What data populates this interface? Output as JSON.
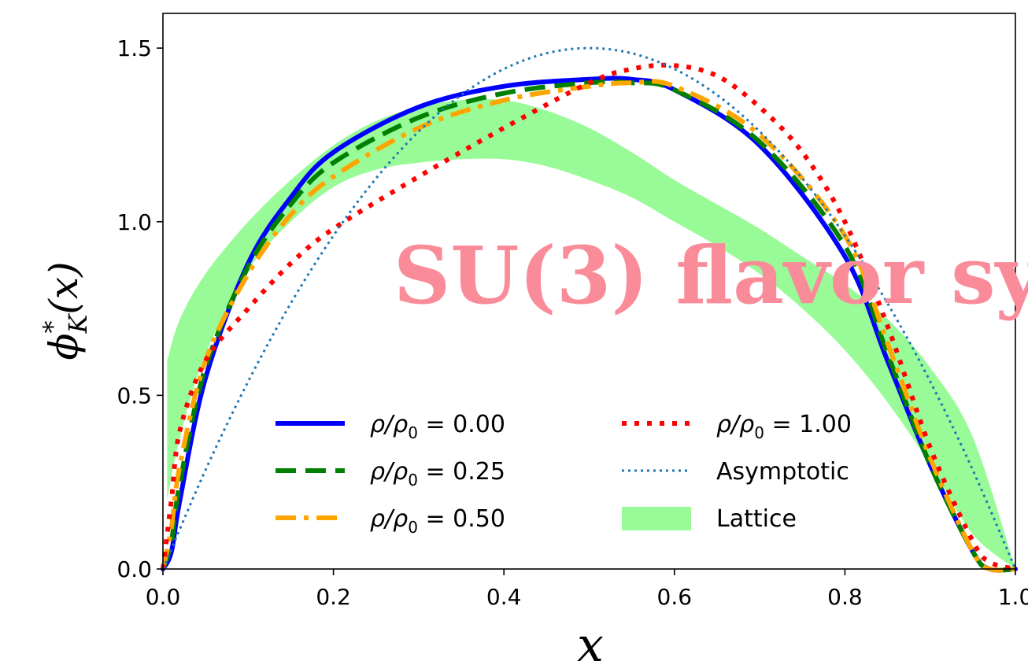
{
  "chart_data": {
    "type": "line",
    "xlabel": "x",
    "ylabel": "ϕ*K(x)",
    "ylabel_parts": {
      "symbol": "ϕ",
      "superscript": "*",
      "subscript": "K",
      "arg": "(x)"
    },
    "xlim": [
      0.0,
      1.0
    ],
    "ylim": [
      0.0,
      1.6
    ],
    "x_ticks": [
      {
        "value": 0.0,
        "label": "0.0"
      },
      {
        "value": 0.2,
        "label": "0.2"
      },
      {
        "value": 0.4,
        "label": "0.4"
      },
      {
        "value": 0.6,
        "label": "0.6"
      },
      {
        "value": 0.8,
        "label": "0.8"
      },
      {
        "value": 1.0,
        "label": "1.0"
      }
    ],
    "y_ticks": [
      {
        "value": 0.0,
        "label": "0.0"
      },
      {
        "value": 0.5,
        "label": "0.5"
      },
      {
        "value": 1.0,
        "label": "1.0"
      },
      {
        "value": 1.5,
        "label": "1.5"
      }
    ],
    "grid": false,
    "legend_placement": "bottom-center",
    "series": [
      {
        "name": "ρ/ρ0 = 0.00",
        "legend": {
          "text": "ρ/ρ",
          "sub": "0",
          "value": " = 0.00"
        },
        "color": "#0000ff",
        "style": "solid",
        "x": [
          0.0,
          0.01,
          0.02,
          0.05,
          0.1,
          0.15,
          0.2,
          0.3,
          0.4,
          0.5,
          0.55,
          0.6,
          0.7,
          0.8,
          0.85,
          0.9,
          0.95,
          0.97,
          1.0
        ],
        "y": [
          0.0,
          0.05,
          0.2,
          0.55,
          0.88,
          1.07,
          1.2,
          1.33,
          1.39,
          1.41,
          1.41,
          1.38,
          1.22,
          0.9,
          0.6,
          0.3,
          0.05,
          0.0,
          0.0
        ]
      },
      {
        "name": "ρ/ρ0 = 0.25",
        "legend": {
          "text": "ρ/ρ",
          "sub": "0",
          "value": " = 0.25"
        },
        "color": "#008000",
        "style": "dashed",
        "x": [
          0.0,
          0.01,
          0.02,
          0.05,
          0.1,
          0.15,
          0.2,
          0.3,
          0.4,
          0.5,
          0.55,
          0.6,
          0.7,
          0.8,
          0.85,
          0.9,
          0.95,
          0.97,
          1.0
        ],
        "y": [
          0.0,
          0.08,
          0.25,
          0.58,
          0.87,
          1.05,
          1.17,
          1.3,
          1.37,
          1.4,
          1.4,
          1.38,
          1.23,
          0.93,
          0.62,
          0.3,
          0.05,
          0.0,
          0.0
        ]
      },
      {
        "name": "ρ/ρ0 = 0.50",
        "legend": {
          "text": "ρ/ρ",
          "sub": "0",
          "value": " = 0.50"
        },
        "color": "#ffa500",
        "style": "dashdot",
        "x": [
          0.0,
          0.01,
          0.02,
          0.05,
          0.1,
          0.15,
          0.2,
          0.3,
          0.4,
          0.5,
          0.55,
          0.6,
          0.7,
          0.8,
          0.85,
          0.9,
          0.95,
          0.97,
          1.0
        ],
        "y": [
          0.0,
          0.12,
          0.3,
          0.6,
          0.85,
          1.02,
          1.13,
          1.27,
          1.35,
          1.39,
          1.4,
          1.39,
          1.25,
          0.96,
          0.65,
          0.32,
          0.05,
          0.0,
          0.0
        ]
      },
      {
        "name": "ρ/ρ0 = 1.00",
        "legend": {
          "text": "ρ/ρ",
          "sub": "0",
          "value": " = 1.00"
        },
        "color": "#ff0000",
        "style": "dotted",
        "x": [
          0.0,
          0.01,
          0.02,
          0.05,
          0.1,
          0.15,
          0.2,
          0.3,
          0.4,
          0.5,
          0.55,
          0.6,
          0.65,
          0.7,
          0.75,
          0.8,
          0.85,
          0.9,
          0.95,
          0.97,
          1.0
        ],
        "y": [
          0.0,
          0.2,
          0.4,
          0.6,
          0.75,
          0.88,
          0.98,
          1.13,
          1.27,
          1.4,
          1.44,
          1.45,
          1.42,
          1.33,
          1.2,
          1.0,
          0.7,
          0.35,
          0.08,
          0.02,
          0.0
        ]
      },
      {
        "name": "Asymptotic",
        "legend": {
          "text": "Asymptotic",
          "sub": "",
          "value": ""
        },
        "color": "#1f77b4",
        "style": "finedotted",
        "formula": "6x(1-x)",
        "x": [
          0.0,
          0.05,
          0.1,
          0.15,
          0.2,
          0.25,
          0.3,
          0.35,
          0.4,
          0.45,
          0.5,
          0.55,
          0.6,
          0.65,
          0.7,
          0.75,
          0.8,
          0.85,
          0.9,
          0.95,
          1.0
        ],
        "y": [
          0.0,
          0.285,
          0.54,
          0.765,
          0.96,
          1.125,
          1.26,
          1.365,
          1.44,
          1.485,
          1.5,
          1.485,
          1.44,
          1.365,
          1.26,
          1.125,
          0.96,
          0.765,
          0.54,
          0.285,
          0.0
        ]
      }
    ],
    "band": {
      "name": "Lattice",
      "color": "#98fb98",
      "x": [
        0.005,
        0.02,
        0.05,
        0.1,
        0.15,
        0.2,
        0.25,
        0.3,
        0.35,
        0.4,
        0.45,
        0.5,
        0.55,
        0.6,
        0.65,
        0.7,
        0.75,
        0.8,
        0.85,
        0.9,
        0.95,
        1.0
      ],
      "upper": [
        0.6,
        0.72,
        0.85,
        1.0,
        1.12,
        1.22,
        1.29,
        1.33,
        1.35,
        1.35,
        1.32,
        1.27,
        1.2,
        1.12,
        1.05,
        0.98,
        0.9,
        0.82,
        0.72,
        0.58,
        0.38,
        0.0
      ],
      "lower": [
        0.2,
        0.38,
        0.62,
        0.86,
        1.0,
        1.1,
        1.15,
        1.17,
        1.18,
        1.18,
        1.16,
        1.12,
        1.07,
        1.0,
        0.93,
        0.85,
        0.75,
        0.63,
        0.48,
        0.3,
        0.1,
        0.0
      ]
    }
  },
  "overlay": {
    "text": "SU(3) flavor sy",
    "color": "#fa8c9a"
  }
}
